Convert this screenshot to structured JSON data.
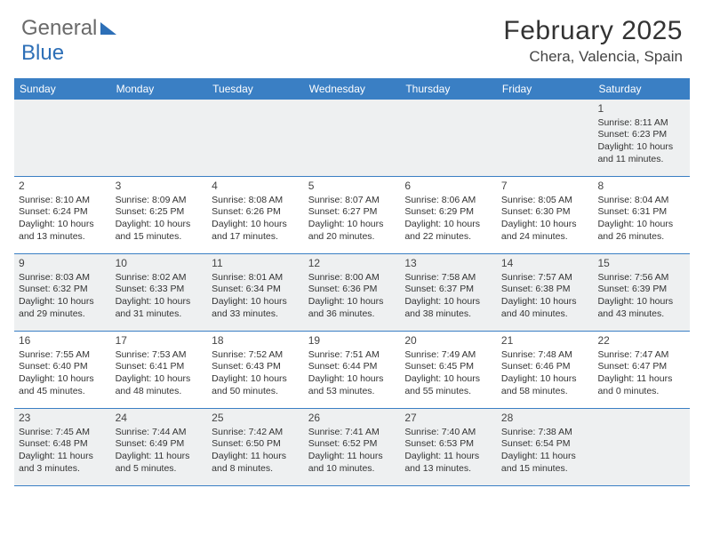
{
  "logo": {
    "general": "General",
    "blue": "Blue"
  },
  "header": {
    "month_title": "February 2025",
    "location": "Chera, Valencia, Spain"
  },
  "colors": {
    "brand": "#3a7fc4",
    "shade": "#eef0f1",
    "text": "#333333"
  },
  "dow": [
    "Sunday",
    "Monday",
    "Tuesday",
    "Wednesday",
    "Thursday",
    "Friday",
    "Saturday"
  ],
  "weeks": [
    [
      {
        "num": "",
        "lines": []
      },
      {
        "num": "",
        "lines": []
      },
      {
        "num": "",
        "lines": []
      },
      {
        "num": "",
        "lines": []
      },
      {
        "num": "",
        "lines": []
      },
      {
        "num": "",
        "lines": []
      },
      {
        "num": "1",
        "lines": [
          "Sunrise: 8:11 AM",
          "Sunset: 6:23 PM",
          "Daylight: 10 hours and 11 minutes."
        ]
      }
    ],
    [
      {
        "num": "2",
        "lines": [
          "Sunrise: 8:10 AM",
          "Sunset: 6:24 PM",
          "Daylight: 10 hours and 13 minutes."
        ]
      },
      {
        "num": "3",
        "lines": [
          "Sunrise: 8:09 AM",
          "Sunset: 6:25 PM",
          "Daylight: 10 hours and 15 minutes."
        ]
      },
      {
        "num": "4",
        "lines": [
          "Sunrise: 8:08 AM",
          "Sunset: 6:26 PM",
          "Daylight: 10 hours and 17 minutes."
        ]
      },
      {
        "num": "5",
        "lines": [
          "Sunrise: 8:07 AM",
          "Sunset: 6:27 PM",
          "Daylight: 10 hours and 20 minutes."
        ]
      },
      {
        "num": "6",
        "lines": [
          "Sunrise: 8:06 AM",
          "Sunset: 6:29 PM",
          "Daylight: 10 hours and 22 minutes."
        ]
      },
      {
        "num": "7",
        "lines": [
          "Sunrise: 8:05 AM",
          "Sunset: 6:30 PM",
          "Daylight: 10 hours and 24 minutes."
        ]
      },
      {
        "num": "8",
        "lines": [
          "Sunrise: 8:04 AM",
          "Sunset: 6:31 PM",
          "Daylight: 10 hours and 26 minutes."
        ]
      }
    ],
    [
      {
        "num": "9",
        "lines": [
          "Sunrise: 8:03 AM",
          "Sunset: 6:32 PM",
          "Daylight: 10 hours and 29 minutes."
        ]
      },
      {
        "num": "10",
        "lines": [
          "Sunrise: 8:02 AM",
          "Sunset: 6:33 PM",
          "Daylight: 10 hours and 31 minutes."
        ]
      },
      {
        "num": "11",
        "lines": [
          "Sunrise: 8:01 AM",
          "Sunset: 6:34 PM",
          "Daylight: 10 hours and 33 minutes."
        ]
      },
      {
        "num": "12",
        "lines": [
          "Sunrise: 8:00 AM",
          "Sunset: 6:36 PM",
          "Daylight: 10 hours and 36 minutes."
        ]
      },
      {
        "num": "13",
        "lines": [
          "Sunrise: 7:58 AM",
          "Sunset: 6:37 PM",
          "Daylight: 10 hours and 38 minutes."
        ]
      },
      {
        "num": "14",
        "lines": [
          "Sunrise: 7:57 AM",
          "Sunset: 6:38 PM",
          "Daylight: 10 hours and 40 minutes."
        ]
      },
      {
        "num": "15",
        "lines": [
          "Sunrise: 7:56 AM",
          "Sunset: 6:39 PM",
          "Daylight: 10 hours and 43 minutes."
        ]
      }
    ],
    [
      {
        "num": "16",
        "lines": [
          "Sunrise: 7:55 AM",
          "Sunset: 6:40 PM",
          "Daylight: 10 hours and 45 minutes."
        ]
      },
      {
        "num": "17",
        "lines": [
          "Sunrise: 7:53 AM",
          "Sunset: 6:41 PM",
          "Daylight: 10 hours and 48 minutes."
        ]
      },
      {
        "num": "18",
        "lines": [
          "Sunrise: 7:52 AM",
          "Sunset: 6:43 PM",
          "Daylight: 10 hours and 50 minutes."
        ]
      },
      {
        "num": "19",
        "lines": [
          "Sunrise: 7:51 AM",
          "Sunset: 6:44 PM",
          "Daylight: 10 hours and 53 minutes."
        ]
      },
      {
        "num": "20",
        "lines": [
          "Sunrise: 7:49 AM",
          "Sunset: 6:45 PM",
          "Daylight: 10 hours and 55 minutes."
        ]
      },
      {
        "num": "21",
        "lines": [
          "Sunrise: 7:48 AM",
          "Sunset: 6:46 PM",
          "Daylight: 10 hours and 58 minutes."
        ]
      },
      {
        "num": "22",
        "lines": [
          "Sunrise: 7:47 AM",
          "Sunset: 6:47 PM",
          "Daylight: 11 hours and 0 minutes."
        ]
      }
    ],
    [
      {
        "num": "23",
        "lines": [
          "Sunrise: 7:45 AM",
          "Sunset: 6:48 PM",
          "Daylight: 11 hours and 3 minutes."
        ]
      },
      {
        "num": "24",
        "lines": [
          "Sunrise: 7:44 AM",
          "Sunset: 6:49 PM",
          "Daylight: 11 hours and 5 minutes."
        ]
      },
      {
        "num": "25",
        "lines": [
          "Sunrise: 7:42 AM",
          "Sunset: 6:50 PM",
          "Daylight: 11 hours and 8 minutes."
        ]
      },
      {
        "num": "26",
        "lines": [
          "Sunrise: 7:41 AM",
          "Sunset: 6:52 PM",
          "Daylight: 11 hours and 10 minutes."
        ]
      },
      {
        "num": "27",
        "lines": [
          "Sunrise: 7:40 AM",
          "Sunset: 6:53 PM",
          "Daylight: 11 hours and 13 minutes."
        ]
      },
      {
        "num": "28",
        "lines": [
          "Sunrise: 7:38 AM",
          "Sunset: 6:54 PM",
          "Daylight: 11 hours and 15 minutes."
        ]
      },
      {
        "num": "",
        "lines": []
      }
    ]
  ]
}
